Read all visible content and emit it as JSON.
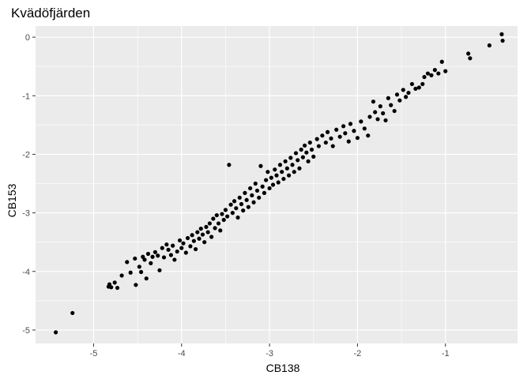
{
  "chart_data": {
    "type": "scatter",
    "title": "Kvädöfjärden",
    "xlabel": "CB138",
    "ylabel": "CB153",
    "xlim": [
      -5.66,
      -0.18
    ],
    "ylim": [
      -5.23,
      0.19
    ],
    "x_ticks": [
      -5,
      -4,
      -3,
      -2,
      -1
    ],
    "y_ticks": [
      -5,
      -4,
      -3,
      -2,
      -1,
      0
    ],
    "x_tick_labels": [
      "-5",
      "-4",
      "-3",
      "-2",
      "-1"
    ],
    "y_tick_labels": [
      "-5",
      "-4",
      "-3",
      "-2",
      "-1",
      "0"
    ],
    "grid": true,
    "panel_background": "#ebebeb",
    "grid_color": "#ffffff",
    "point_color": "#000000",
    "points": [
      [
        -5.43,
        -5.04
      ],
      [
        -5.24,
        -4.71
      ],
      [
        -4.83,
        -4.26
      ],
      [
        -4.82,
        -4.22
      ],
      [
        -4.8,
        -4.27
      ],
      [
        -4.76,
        -4.19
      ],
      [
        -4.73,
        -4.28
      ],
      [
        -4.68,
        -4.07
      ],
      [
        -4.62,
        -3.84
      ],
      [
        -4.58,
        -4.02
      ],
      [
        -4.53,
        -3.78
      ],
      [
        -4.52,
        -4.23
      ],
      [
        -4.48,
        -3.92
      ],
      [
        -4.46,
        -4.01
      ],
      [
        -4.44,
        -3.75
      ],
      [
        -4.42,
        -3.8
      ],
      [
        -4.4,
        -4.12
      ],
      [
        -4.38,
        -3.7
      ],
      [
        -4.35,
        -3.86
      ],
      [
        -4.33,
        -3.75
      ],
      [
        -4.3,
        -3.67
      ],
      [
        -4.27,
        -3.73
      ],
      [
        -4.25,
        -3.98
      ],
      [
        -4.22,
        -3.6
      ],
      [
        -4.2,
        -3.76
      ],
      [
        -4.17,
        -3.54
      ],
      [
        -4.15,
        -3.63
      ],
      [
        -4.12,
        -3.72
      ],
      [
        -4.1,
        -3.56
      ],
      [
        -4.08,
        -3.8
      ],
      [
        -4.05,
        -3.66
      ],
      [
        -4.02,
        -3.47
      ],
      [
        -4.0,
        -3.6
      ],
      [
        -3.98,
        -3.52
      ],
      [
        -3.95,
        -3.68
      ],
      [
        -3.93,
        -3.43
      ],
      [
        -3.9,
        -3.57
      ],
      [
        -3.88,
        -3.38
      ],
      [
        -3.86,
        -3.48
      ],
      [
        -3.84,
        -3.62
      ],
      [
        -3.82,
        -3.33
      ],
      [
        -3.8,
        -3.44
      ],
      [
        -3.78,
        -3.27
      ],
      [
        -3.76,
        -3.37
      ],
      [
        -3.74,
        -3.5
      ],
      [
        -3.72,
        -3.24
      ],
      [
        -3.7,
        -3.33
      ],
      [
        -3.68,
        -3.18
      ],
      [
        -3.66,
        -3.41
      ],
      [
        -3.64,
        -3.1
      ],
      [
        -3.62,
        -3.26
      ],
      [
        -3.6,
        -3.04
      ],
      [
        -3.58,
        -3.18
      ],
      [
        -3.56,
        -3.3
      ],
      [
        -3.54,
        -3.02
      ],
      [
        -3.52,
        -3.12
      ],
      [
        -3.5,
        -2.95
      ],
      [
        -3.48,
        -3.06
      ],
      [
        -3.46,
        -2.18
      ],
      [
        -3.44,
        -2.86
      ],
      [
        -3.42,
        -3.0
      ],
      [
        -3.4,
        -2.8
      ],
      [
        -3.38,
        -2.92
      ],
      [
        -3.36,
        -3.08
      ],
      [
        -3.34,
        -2.74
      ],
      [
        -3.32,
        -2.85
      ],
      [
        -3.3,
        -2.96
      ],
      [
        -3.28,
        -2.66
      ],
      [
        -3.26,
        -2.78
      ],
      [
        -3.24,
        -2.9
      ],
      [
        -3.22,
        -2.58
      ],
      [
        -3.2,
        -2.7
      ],
      [
        -3.18,
        -2.82
      ],
      [
        -3.16,
        -2.5
      ],
      [
        -3.14,
        -2.62
      ],
      [
        -3.12,
        -2.74
      ],
      [
        -3.1,
        -2.2
      ],
      [
        -3.08,
        -2.55
      ],
      [
        -3.06,
        -2.66
      ],
      [
        -3.04,
        -2.44
      ],
      [
        -3.02,
        -2.3
      ],
      [
        -3.0,
        -2.58
      ],
      [
        -2.98,
        -2.4
      ],
      [
        -2.96,
        -2.52
      ],
      [
        -2.94,
        -2.26
      ],
      [
        -2.92,
        -2.36
      ],
      [
        -2.9,
        -2.48
      ],
      [
        -2.88,
        -2.18
      ],
      [
        -2.86,
        -2.3
      ],
      [
        -2.84,
        -2.42
      ],
      [
        -2.82,
        -2.12
      ],
      [
        -2.8,
        -2.24
      ],
      [
        -2.78,
        -2.36
      ],
      [
        -2.76,
        -2.06
      ],
      [
        -2.74,
        -2.18
      ],
      [
        -2.72,
        -2.3
      ],
      [
        -2.7,
        -1.98
      ],
      [
        -2.68,
        -2.1
      ],
      [
        -2.66,
        -2.24
      ],
      [
        -2.64,
        -1.92
      ],
      [
        -2.62,
        -2.05
      ],
      [
        -2.6,
        -1.85
      ],
      [
        -2.58,
        -1.97
      ],
      [
        -2.56,
        -2.12
      ],
      [
        -2.54,
        -1.8
      ],
      [
        -2.52,
        -1.92
      ],
      [
        -2.5,
        -2.04
      ],
      [
        -2.46,
        -1.74
      ],
      [
        -2.44,
        -1.86
      ],
      [
        -2.4,
        -1.68
      ],
      [
        -2.36,
        -1.8
      ],
      [
        -2.34,
        -1.62
      ],
      [
        -2.3,
        -1.73
      ],
      [
        -2.28,
        -1.86
      ],
      [
        -2.24,
        -1.58
      ],
      [
        -2.2,
        -1.7
      ],
      [
        -2.16,
        -1.52
      ],
      [
        -2.14,
        -1.64
      ],
      [
        -2.1,
        -1.78
      ],
      [
        -2.08,
        -1.48
      ],
      [
        -2.04,
        -1.6
      ],
      [
        -2.0,
        -1.72
      ],
      [
        -1.96,
        -1.44
      ],
      [
        -1.92,
        -1.56
      ],
      [
        -1.88,
        -1.68
      ],
      [
        -1.86,
        -1.36
      ],
      [
        -1.82,
        -1.1
      ],
      [
        -1.8,
        -1.28
      ],
      [
        -1.77,
        -1.4
      ],
      [
        -1.74,
        -1.18
      ],
      [
        -1.71,
        -1.3
      ],
      [
        -1.68,
        -1.42
      ],
      [
        -1.65,
        -1.04
      ],
      [
        -1.62,
        -1.16
      ],
      [
        -1.58,
        -1.26
      ],
      [
        -1.55,
        -0.98
      ],
      [
        -1.52,
        -1.08
      ],
      [
        -1.48,
        -0.9
      ],
      [
        -1.45,
        -1.02
      ],
      [
        -1.42,
        -0.95
      ],
      [
        -1.38,
        -0.8
      ],
      [
        -1.34,
        -0.88
      ],
      [
        -1.3,
        -0.86
      ],
      [
        -1.26,
        -0.8
      ],
      [
        -1.24,
        -0.68
      ],
      [
        -1.2,
        -0.62
      ],
      [
        -1.16,
        -0.65
      ],
      [
        -1.12,
        -0.56
      ],
      [
        -1.08,
        -0.62
      ],
      [
        -1.04,
        -0.42
      ],
      [
        -1.0,
        -0.58
      ],
      [
        -0.74,
        -0.28
      ],
      [
        -0.72,
        -0.36
      ],
      [
        -0.5,
        -0.14
      ],
      [
        -0.36,
        0.05
      ],
      [
        -0.35,
        -0.06
      ]
    ]
  }
}
